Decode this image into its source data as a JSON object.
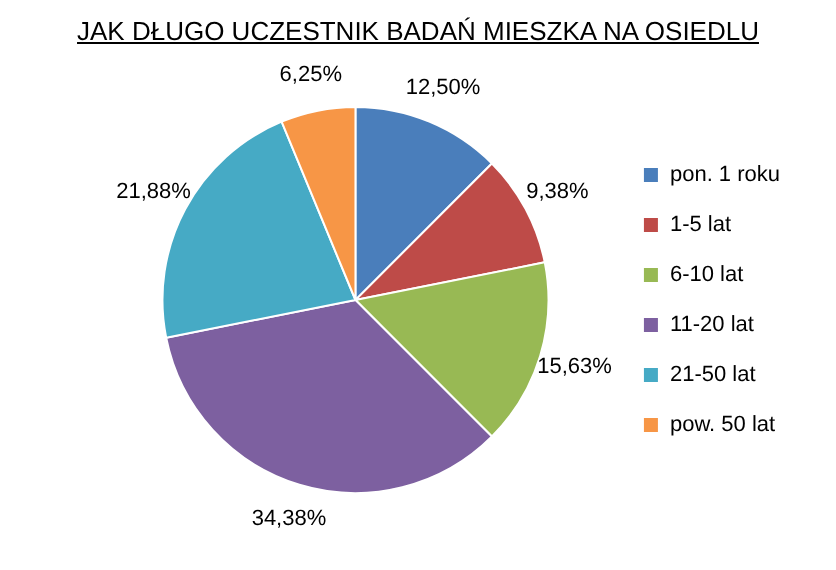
{
  "chart_data": {
    "type": "pie",
    "title": "JAK DŁUGO UCZESTNIK BADAŃ MIESZKA NA OSIEDLU",
    "categories": [
      "pon. 1 roku",
      "1-5 lat",
      "6-10 lat",
      "11-20 lat",
      "21-50 lat",
      "pow. 50 lat"
    ],
    "values": [
      12.5,
      9.38,
      15.63,
      34.38,
      21.88,
      6.25
    ],
    "colors": [
      "#4a7ebb",
      "#be4b48",
      "#98b954",
      "#7d60a0",
      "#46aac5",
      "#f79646"
    ],
    "value_labels": [
      "12,50%",
      "9,38%",
      "15,63%",
      "34,38%",
      "21,88%",
      "6,25%"
    ],
    "legend": "right"
  }
}
